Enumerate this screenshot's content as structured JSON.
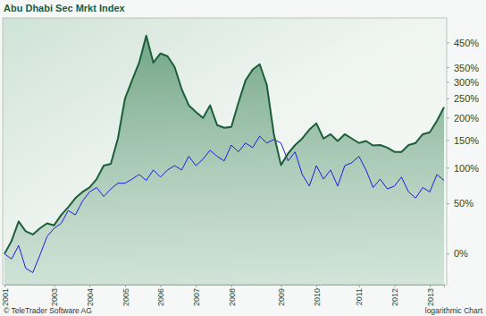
{
  "chart_data": {
    "type": "line",
    "title": "Abu Dhabi Sec Mrkt Index",
    "annotations": [
      "© TeleTrader Software AG",
      "logarithmic Chart"
    ],
    "log": "y",
    "grid": false,
    "categories": [
      "2001",
      null,
      null,
      null,
      null,
      null,
      null,
      "2003",
      null,
      null,
      null,
      null,
      "2004",
      null,
      null,
      null,
      null,
      "2005",
      null,
      null,
      null,
      null,
      "2006",
      null,
      null,
      null,
      null,
      "2007",
      null,
      null,
      null,
      null,
      "2008",
      null,
      null,
      null,
      null,
      null,
      null,
      "2009",
      null,
      null,
      null,
      null,
      "2010",
      null,
      null,
      null,
      null,
      null,
      "2011",
      null,
      null,
      null,
      null,
      "2012",
      null,
      null,
      null,
      null,
      "2013",
      null,
      null
    ],
    "series": [
      {
        "type": "area",
        "color": "#1b5e3a",
        "values": [
          0,
          11,
          30,
          20,
          17,
          23,
          28,
          26,
          37,
          46,
          57,
          65,
          71,
          83,
          104,
          107,
          154,
          251,
          307,
          369,
          483,
          369,
          405,
          394,
          353,
          278,
          232,
          215,
          200,
          232,
          183,
          177,
          179,
          239,
          306,
          343,
          363,
          292,
          163,
          105,
          125,
          141,
          154,
          173,
          187,
          154,
          163,
          149,
          163,
          154,
          145,
          149,
          140,
          141,
          136,
          128,
          128,
          141,
          145,
          163,
          167,
          193,
          227
        ]
      },
      {
        "type": "line",
        "color": "#1c1ce0",
        "values": [
          0,
          -4,
          7,
          -11,
          -14,
          -1,
          15,
          23,
          28,
          42,
          37,
          53,
          65,
          71,
          59,
          69,
          77,
          77,
          83,
          90,
          81,
          97,
          86,
          97,
          104,
          97,
          120,
          104,
          115,
          131,
          120,
          112,
          141,
          128,
          145,
          136,
          159,
          145,
          152,
          145,
          112,
          128,
          90,
          73,
          104,
          83,
          97,
          73,
          104,
          109,
          120,
          97,
          71,
          83,
          69,
          73,
          86,
          65,
          57,
          71,
          65,
          90,
          81
        ]
      }
    ],
    "ylim": [
      -22,
      573
    ],
    "yticks": [
      {
        "value": 450,
        "label": "450%"
      },
      {
        "value": 350,
        "label": "350%"
      },
      {
        "value": 300,
        "label": "300%"
      },
      {
        "value": 250,
        "label": "250%"
      },
      {
        "value": 200,
        "label": "200%"
      },
      {
        "value": 150,
        "label": "150%"
      },
      {
        "value": 100,
        "label": "100%"
      },
      {
        "value": 50,
        "label": "50%"
      },
      {
        "value": 0,
        "label": "0%"
      }
    ]
  }
}
